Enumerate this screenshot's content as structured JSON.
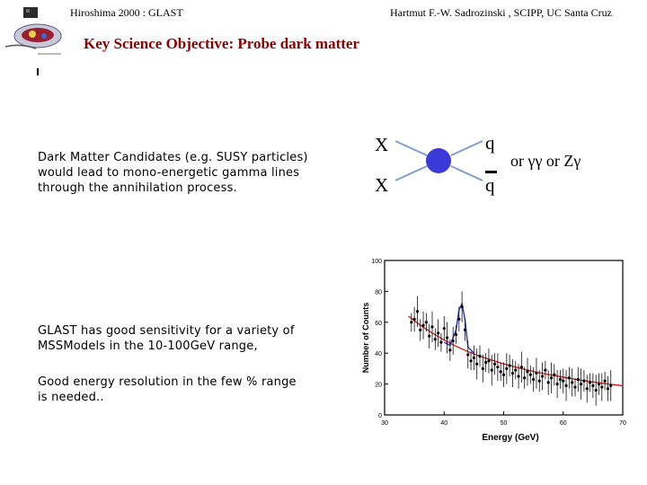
{
  "header": {
    "left": "Hiroshima 2000 : GLAST",
    "right": "Hartmut F.-W. Sadrozinski , SCIPP, UC Santa Cruz"
  },
  "title": "Key Science Objective: Probe dark matter",
  "text_blocks": {
    "candidates": "Dark Matter Candidates (e.g. SUSY particles) would lead to mono-energetic gamma lines through the annihilation process.",
    "sensitivity": "GLAST has good sensitivity for a variety of MSSModels in the 10-100GeV range,",
    "resolution": "Good energy resolution in the few % range is needed.."
  },
  "diagram": {
    "in_1": "X",
    "in_2": "X",
    "out_1": "q",
    "out_2": "q",
    "alt": "or γγ or Zγ",
    "colors": {
      "vertex": "#3a3ad8",
      "lines": "#7f9fcf"
    }
  },
  "chart_data": {
    "type": "scatter",
    "xlabel": "Energy (GeV)",
    "ylabel": "Number of Counts",
    "xlim": [
      30,
      70
    ],
    "ylim": [
      0,
      100
    ],
    "xticks": [
      "30",
      "40",
      "50",
      "60",
      "70"
    ],
    "yticks": [
      "0",
      "20",
      "40",
      "60",
      "80",
      "100"
    ],
    "series": [
      {
        "kind": "points",
        "x": [
          34.5,
          35,
          35.5,
          36,
          36.5,
          37,
          37.5,
          38,
          38.5,
          39,
          39.5,
          40,
          40.5,
          41,
          41.5,
          42,
          42.5,
          43,
          43.5,
          44,
          44.5,
          45,
          45.5,
          46,
          46.5,
          47,
          47.5,
          48,
          48.5,
          49,
          49.5,
          50,
          50.5,
          51,
          51.5,
          52,
          52.5,
          53,
          53.5,
          54,
          54.5,
          55,
          55.5,
          56,
          56.5,
          57,
          57.5,
          58,
          58.5,
          59,
          59.5,
          60,
          60.5,
          61,
          61.5,
          62,
          62.5,
          63,
          63.5,
          64,
          64.5,
          65,
          65.5,
          66,
          66.5,
          67,
          67.5,
          68
        ],
        "y": [
          60,
          62,
          67,
          55,
          58,
          60,
          51,
          57,
          49,
          53,
          47,
          56,
          50,
          42,
          48,
          52,
          62,
          70,
          55,
          39,
          35,
          37,
          33,
          38,
          30,
          34,
          35,
          29,
          33,
          31,
          28,
          26,
          30,
          32,
          27,
          29,
          25,
          31,
          24,
          28,
          26,
          23,
          27,
          22,
          25,
          29,
          21,
          24,
          26,
          20,
          23,
          22,
          19,
          24,
          21,
          18,
          23,
          20,
          22,
          17,
          21,
          19,
          16,
          20,
          18,
          22,
          17,
          19
        ]
      },
      {
        "kind": "fit",
        "color": "#d62020",
        "x": [
          34,
          36,
          38,
          40,
          42,
          44,
          46,
          48,
          50,
          52,
          54,
          56,
          58,
          60,
          62,
          64,
          66,
          68,
          70
        ],
        "y": [
          64,
          58,
          53,
          48.5,
          44.5,
          41,
          38,
          35.5,
          33,
          31,
          29,
          27.3,
          25.8,
          24.4,
          23.1,
          21.9,
          20.8,
          19.8,
          18.9
        ]
      },
      {
        "kind": "signal",
        "color": "#1f2fd0",
        "x": [
          40,
          41,
          42,
          42.5,
          43,
          43.5,
          44,
          45
        ],
        "y": [
          47,
          45,
          55,
          68,
          72,
          62,
          44,
          40
        ]
      }
    ]
  }
}
